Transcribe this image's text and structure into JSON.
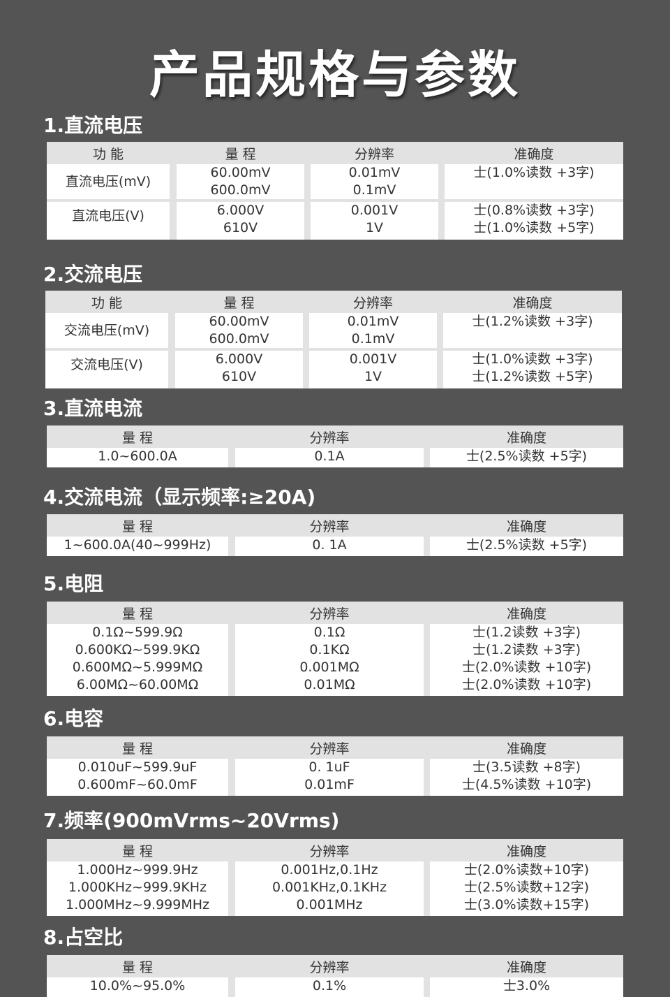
{
  "title": "产品规格与参数",
  "sections": [
    {
      "heading": "1.直流电压",
      "cols": 4,
      "headers": [
        "功 能",
        "量 程",
        "分辨率",
        "准确度"
      ],
      "rows": [
        {
          "func": "直流电压(mV)",
          "range": [
            "60.00mV",
            "600.0mV"
          ],
          "res": [
            "0.01mV",
            "0.1mV"
          ],
          "acc": [
            "士(1.0%读数 +3字)"
          ]
        },
        {
          "func": "直流电压(V)",
          "range": [
            "6.000V",
            "610V"
          ],
          "res": [
            "0.001V",
            "1V"
          ],
          "acc": [
            "士(0.8%读数 +3字)",
            "士(1.0%读数 +5字)"
          ]
        }
      ]
    },
    {
      "heading": "2.交流电压",
      "cols": 4,
      "headers": [
        "功 能",
        "量 程",
        "分辨率",
        "准确度"
      ],
      "rows": [
        {
          "func": "交流电压(mV)",
          "range": [
            "60.00mV",
            "600.0mV"
          ],
          "res": [
            "0.01mV",
            "0.1mV"
          ],
          "acc": [
            "士(1.2%读数 +3字)"
          ]
        },
        {
          "func": "交流电压(V)",
          "range": [
            "6.000V",
            "610V"
          ],
          "res": [
            "0.001V",
            "1V"
          ],
          "acc": [
            "士(1.0%读数 +3字)",
            "士(1.2%读数 +5字)"
          ]
        }
      ]
    },
    {
      "heading": "3.直流电流",
      "cols": 3,
      "headers": [
        "量 程",
        "分辨率",
        "准确度"
      ],
      "rows": [
        {
          "range": [
            "1.0~600.0A"
          ],
          "res": [
            "0.1A"
          ],
          "acc": [
            "士(2.5%读数 +5字)"
          ]
        }
      ]
    },
    {
      "heading": "4.交流电流（显示频率:≥20A)",
      "cols": 3,
      "headers": [
        "量 程",
        "分辨率",
        "准确度"
      ],
      "rows": [
        {
          "range": [
            "1~600.0A(40~999Hz)"
          ],
          "res": [
            "0. 1A"
          ],
          "acc": [
            "士(2.5%读数 +5字)"
          ]
        }
      ]
    },
    {
      "heading": "5.电阻",
      "cols": 3,
      "headers": [
        "量 程",
        "分辨率",
        "准确度"
      ],
      "rows": [
        {
          "range": [
            "0.1Ω~599.9Ω",
            "0.600KΩ~599.9KΩ",
            "0.600MΩ~5.999MΩ",
            "6.00MΩ~60.00MΩ"
          ],
          "res": [
            "0.1Ω",
            "0.1KΩ",
            "0.001MΩ",
            "0.01MΩ"
          ],
          "acc": [
            "士(1.2读数 +3字)",
            "士(1.2读数 +3字)",
            "士(2.0%读数 +10字)",
            "士(2.0%读数 +10字)"
          ]
        }
      ]
    },
    {
      "heading": "6.电容",
      "cols": 3,
      "headers": [
        "量 程",
        "分辨率",
        "准确度"
      ],
      "rows": [
        {
          "range": [
            "0.010uF~599.9uF",
            "0.600mF~60.0mF"
          ],
          "res": [
            "0. 1uF",
            "0.01mF"
          ],
          "acc": [
            "士(3.5读数 +8字)",
            "士(4.5%读数 +10字)"
          ]
        }
      ]
    },
    {
      "heading": "7.频率(900mVrms~20Vrms)",
      "cols": 3,
      "headers": [
        "量 程",
        "分辨率",
        "准确度"
      ],
      "rows": [
        {
          "range": [
            "1.000Hz~999.9Hz",
            "1.000KHz~999.9KHz",
            "1.000MHz~9.999MHz"
          ],
          "res": [
            "0.001Hz,0.1Hz",
            "0.001KHz,0.1KHz",
            "0.001MHz"
          ],
          "acc": [
            "士(2.0%读数+10字)",
            "士(2.5%读数+12字)",
            "士(3.0%读数+15字)"
          ]
        }
      ]
    },
    {
      "heading": "8.占空比",
      "cols": 3,
      "headers": [
        "量 程",
        "分辨率",
        "准确度"
      ],
      "rows": [
        {
          "range": [
            "10.0%~95.0%"
          ],
          "res": [
            "0.1%"
          ],
          "acc": [
            "士3.0%"
          ]
        }
      ]
    }
  ]
}
